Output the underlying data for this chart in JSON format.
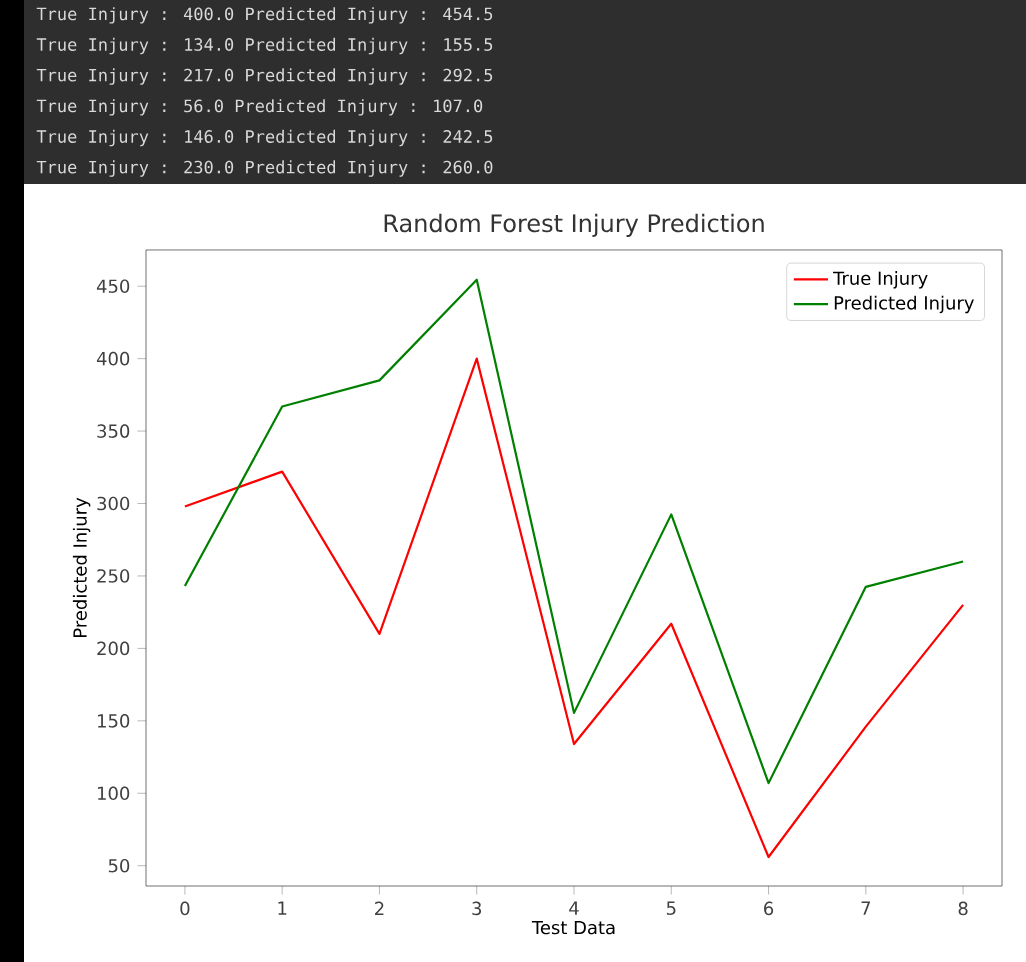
{
  "chart_data": {
    "type": "line",
    "title": "Random Forest Injury Prediction",
    "xlabel": "Test Data",
    "ylabel": "Predicted Injury",
    "x": [
      0,
      1,
      2,
      3,
      4,
      5,
      6,
      7,
      8
    ],
    "series": [
      {
        "name": "True Injury",
        "color": "#ff0000",
        "values": [
          298,
          322,
          210,
          400,
          134,
          217,
          56,
          146,
          230
        ]
      },
      {
        "name": "Predicted Injury",
        "color": "#008000",
        "values": [
          243,
          367,
          385,
          454.5,
          155.5,
          292.5,
          107,
          242.5,
          260
        ]
      }
    ],
    "xlim": [
      -0.4,
      8.4
    ],
    "xticks": [
      0,
      1,
      2,
      3,
      4,
      5,
      6,
      7,
      8
    ],
    "ylim": [
      36,
      475
    ],
    "yticks": [
      50,
      100,
      150,
      200,
      250,
      300,
      350,
      400,
      450
    ],
    "legend": "top right",
    "grid": false,
    "marker": "none",
    "line_style": "solid",
    "annotations": [
      "True Injury : 400.0 Predicted Injury : 454.5",
      "True Injury : 134.0 Predicted Injury : 155.5",
      "True Injury : 217.0 Predicted Injury : 292.5",
      "True Injury : 56.0 Predicted Injury : 107.0",
      "True Injury : 146.0 Predicted Injury : 242.5",
      "True Injury : 230.0 Predicted Injury : 260.0"
    ]
  }
}
